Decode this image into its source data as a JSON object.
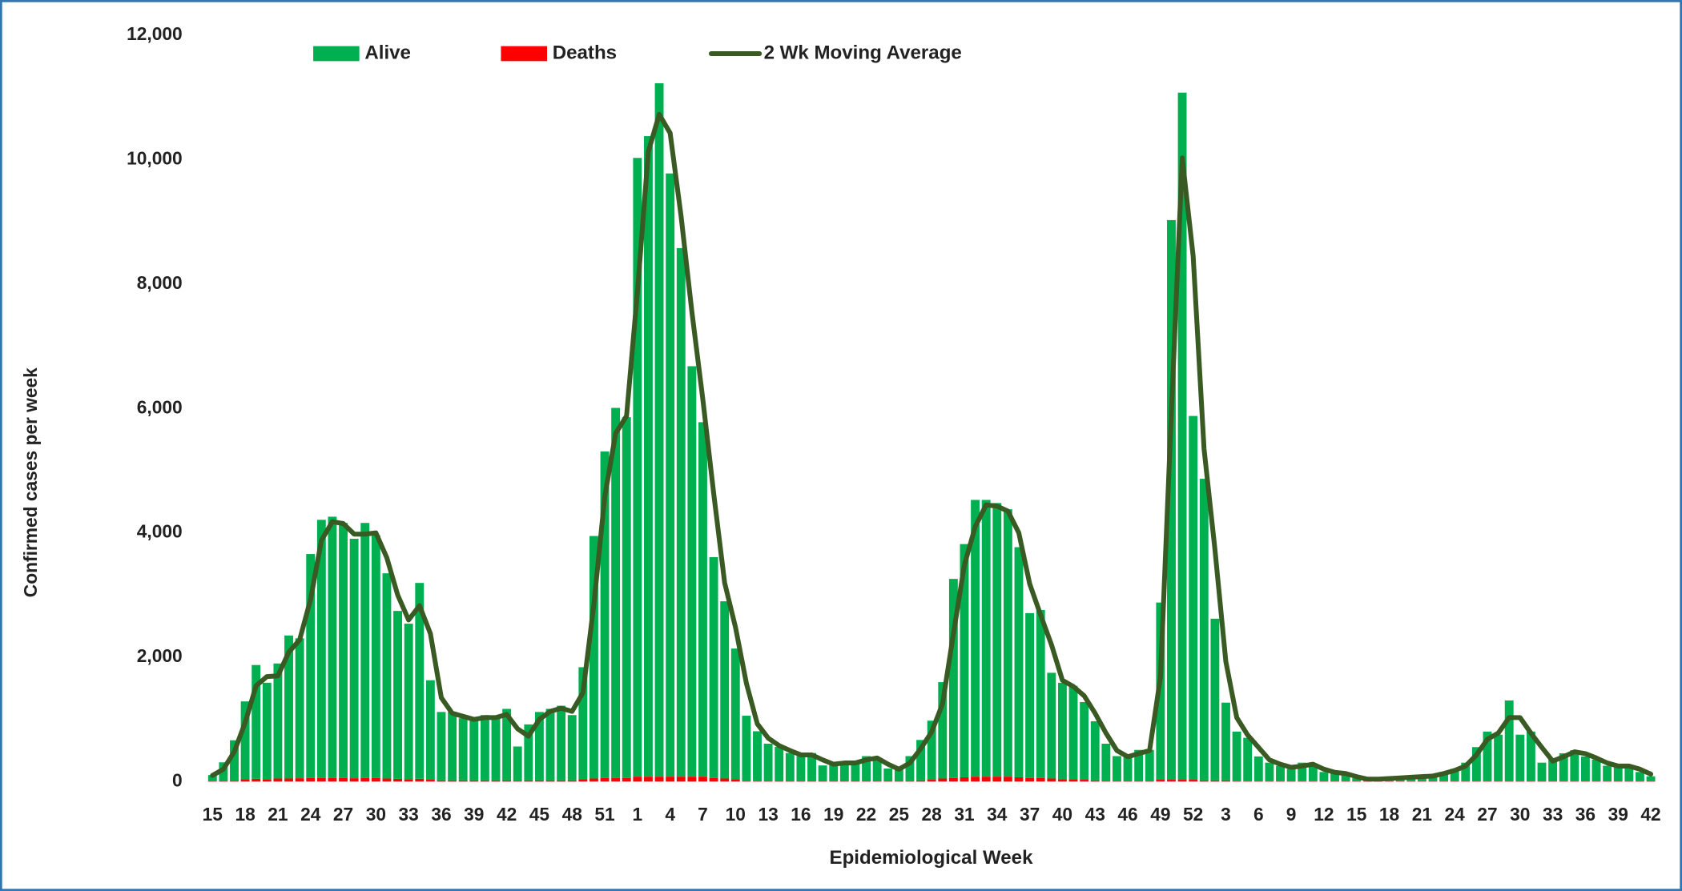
{
  "chart_data": {
    "type": "bar",
    "x_label": "Epidemiological Week",
    "y_label": "Confirmed cases per week",
    "categories": [
      "15",
      null,
      null,
      "18",
      null,
      null,
      "21",
      null,
      null,
      "24",
      null,
      null,
      "27",
      null,
      null,
      "30",
      null,
      null,
      "33",
      null,
      null,
      "36",
      null,
      null,
      "39",
      null,
      null,
      "42",
      null,
      null,
      "45",
      null,
      null,
      "48",
      null,
      null,
      "51",
      null,
      null,
      "1",
      null,
      null,
      "4",
      null,
      null,
      "7",
      null,
      null,
      "10",
      null,
      null,
      "13",
      null,
      null,
      "16",
      null,
      null,
      "19",
      null,
      null,
      "22",
      null,
      null,
      "25",
      null,
      null,
      "28",
      null,
      null,
      "31",
      null,
      null,
      "34",
      null,
      null,
      "37",
      null,
      null,
      "40",
      null,
      null,
      "43",
      null,
      null,
      "46",
      null,
      null,
      "49",
      null,
      null,
      "52",
      null,
      null,
      "3",
      null,
      null,
      "6",
      null,
      null,
      "9",
      null,
      null,
      "12",
      null,
      null,
      "15",
      null,
      null,
      "18",
      null,
      null,
      "21",
      null,
      null,
      "24",
      null,
      null,
      "27",
      null,
      null,
      "30",
      null,
      null,
      "33",
      null,
      null,
      "36",
      null,
      null,
      "39",
      null,
      null,
      "42"
    ],
    "series": [
      {
        "name": "Alive",
        "type": "bar",
        "color": "#00b050",
        "values": [
          100,
          300,
          650,
          1250,
          1830,
          1550,
          1850,
          2300,
          2250,
          3600,
          4150,
          4200,
          4100,
          3850,
          4100,
          3900,
          3300,
          2700,
          2500,
          3150,
          1600,
          1100,
          1100,
          1000,
          1000,
          1050,
          1000,
          1150,
          550,
          900,
          1100,
          1150,
          1200,
          1050,
          1800,
          3900,
          5250,
          5950,
          5800,
          9950,
          10300,
          11150,
          9700,
          8500,
          6600,
          5700,
          3550,
          2850,
          2100,
          1050,
          800,
          600,
          550,
          450,
          400,
          450,
          250,
          300,
          300,
          300,
          400,
          350,
          200,
          200,
          400,
          650,
          950,
          1550,
          3200,
          3750,
          4450,
          4450,
          4400,
          4300,
          3700,
          2650,
          2700,
          1700,
          1550,
          1500,
          1250,
          950,
          600,
          400,
          400,
          500,
          500,
          2850,
          9000,
          11050,
          5850,
          4850,
          2600,
          1250,
          800,
          700,
          400,
          300,
          250,
          200,
          300,
          250,
          150,
          150,
          100,
          50,
          30,
          40,
          50,
          60,
          70,
          80,
          100,
          150,
          200,
          300,
          550,
          800,
          750,
          1300,
          750,
          800,
          300,
          350,
          450,
          500,
          400,
          350,
          250,
          250,
          250,
          150,
          80
        ]
      },
      {
        "name": "Deaths",
        "type": "bar",
        "color": "#ff0000",
        "values": [
          5,
          10,
          15,
          40,
          45,
          40,
          50,
          50,
          55,
          60,
          60,
          60,
          60,
          55,
          60,
          60,
          50,
          45,
          40,
          45,
          30,
          20,
          20,
          20,
          20,
          20,
          20,
          20,
          15,
          20,
          20,
          20,
          20,
          20,
          40,
          50,
          60,
          60,
          60,
          80,
          80,
          80,
          80,
          80,
          80,
          80,
          60,
          50,
          40,
          10,
          10,
          10,
          10,
          10,
          10,
          10,
          10,
          10,
          10,
          10,
          10,
          10,
          10,
          10,
          10,
          20,
          30,
          50,
          60,
          70,
          80,
          80,
          80,
          80,
          70,
          60,
          60,
          50,
          40,
          40,
          30,
          20,
          10,
          10,
          10,
          10,
          10,
          30,
          30,
          30,
          30,
          20,
          20,
          20,
          5,
          5,
          5,
          5,
          5,
          5,
          5,
          5,
          5,
          5,
          5,
          5,
          5,
          5,
          5,
          5,
          5,
          5,
          5,
          5,
          5,
          5,
          5,
          5,
          5,
          5,
          5,
          5,
          5,
          5,
          5,
          5,
          5,
          5,
          5,
          5,
          5,
          5,
          5
        ]
      },
      {
        "name": "2 Wk Moving Average",
        "type": "line",
        "color": "#3a5a23",
        "values": [
          100,
          200,
          480,
          950,
          1540,
          1690,
          1700,
          2080,
          2280,
          2930,
          3880,
          4180,
          4150,
          3980,
          3980,
          4000,
          3600,
          3000,
          2600,
          2830,
          2380,
          1350,
          1100,
          1050,
          1000,
          1030,
          1030,
          1080,
          850,
          730,
          1000,
          1130,
          1180,
          1130,
          1430,
          2850,
          4580,
          5600,
          5880,
          7880,
          10130,
          10730,
          10430,
          9100,
          7550,
          6150,
          4630,
          3200,
          2480,
          1580,
          930,
          700,
          580,
          500,
          430,
          430,
          350,
          280,
          300,
          300,
          350,
          380,
          280,
          200,
          300,
          530,
          800,
          1250,
          2380,
          3480,
          4100,
          4450,
          4430,
          4350,
          4000,
          3180,
          2680,
          2200,
          1630,
          1530,
          1380,
          1100,
          780,
          500,
          400,
          450,
          500,
          1680,
          5930,
          10030,
          8450,
          5350,
          3730,
          1930,
          1030,
          750,
          550,
          350,
          280,
          230,
          250,
          280,
          200,
          150,
          130,
          80,
          40,
          40,
          50,
          60,
          70,
          80,
          90,
          130,
          180,
          250,
          430,
          680,
          780,
          1030,
          1030,
          780,
          550,
          330,
          400,
          480,
          450,
          380,
          300,
          250,
          250,
          200,
          120
        ]
      }
    ],
    "ylim": [
      0,
      12000
    ],
    "yticks": [
      0,
      {
        "value": 2000,
        "label": "2,000"
      },
      {
        "value": 4000,
        "label": "4,000"
      },
      {
        "value": 6000,
        "label": "6,000"
      },
      {
        "value": 8000,
        "label": "8,000"
      },
      {
        "value": 10000,
        "label": "10,000"
      },
      {
        "value": 12000,
        "label": "12,000"
      }
    ],
    "grid": false,
    "legend": "top"
  }
}
